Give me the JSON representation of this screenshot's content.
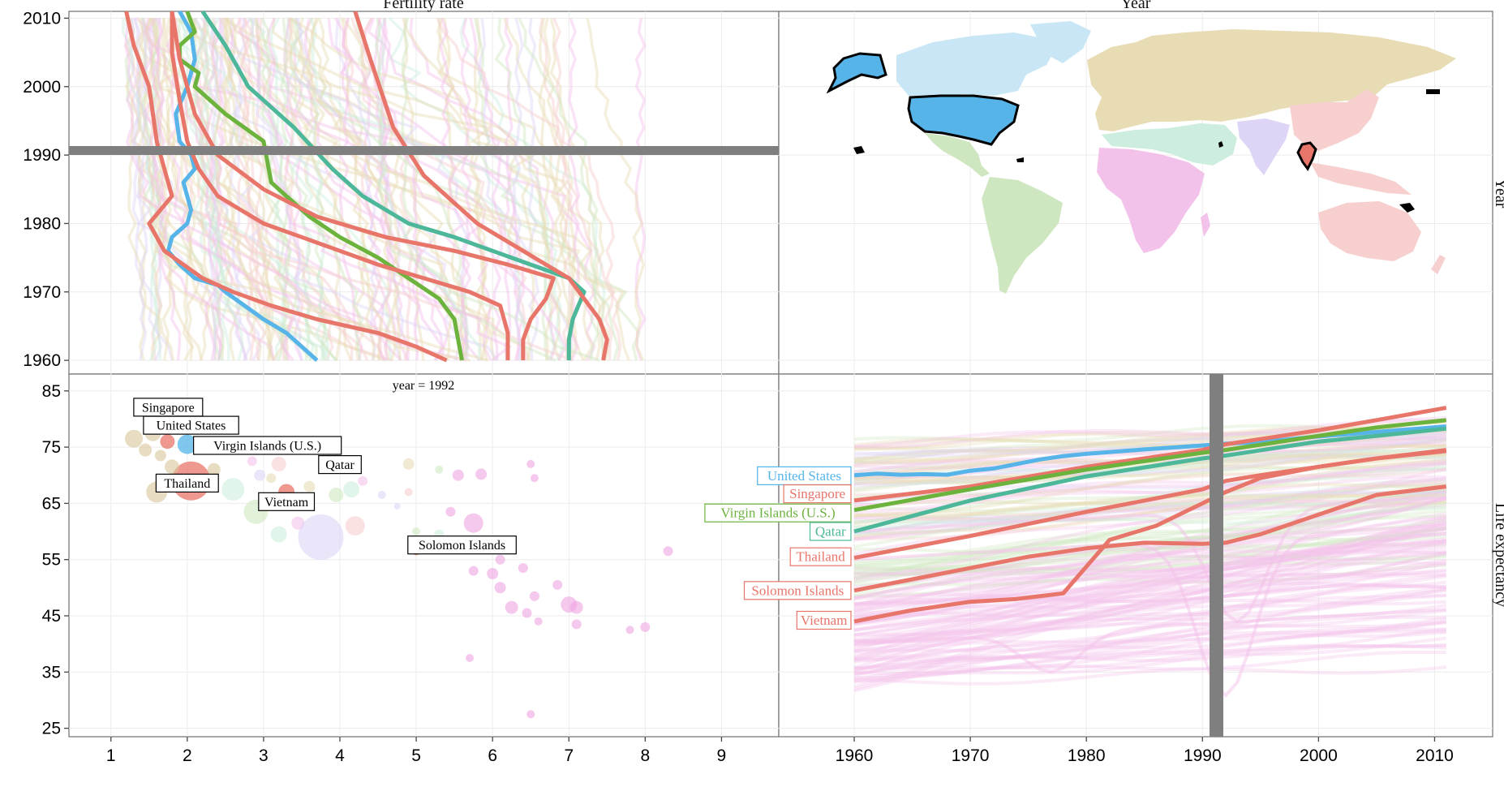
{
  "strips": {
    "top_left": "Fertility rate",
    "top_right": "Year",
    "right_top": "Year",
    "right_bottom": "Life expectancy"
  },
  "annotation": "year = 1992",
  "selected_year": 1992,
  "colors": {
    "united_states": "#56b4e9",
    "singapore": "#e8756a",
    "virgin_islands": "#6cb33e",
    "qatar": "#4db79a",
    "thailand": "#e8756a",
    "solomon_islands": "#e8756a",
    "vietnam": "#e8756a",
    "time_marker": "#7f7f7f",
    "region_americas": "#cfe7c0",
    "region_north_america": "#c9e6f6",
    "region_europe_asia": "#e8dcb5",
    "region_africa": "#f3c2ea",
    "region_middle_east": "#cdeede",
    "region_south_asia": "#ddd4f6",
    "region_east_asia_pacific": "#f7cfcf"
  },
  "chart_data": [
    {
      "type": "line",
      "panel": "fertility-over-time",
      "title": "Fertility rate",
      "xlim": [
        0.45,
        9.75
      ],
      "ylim": [
        1958,
        2011
      ],
      "x_ticks": [],
      "y_ticks": [
        "1960",
        "1970",
        "1980",
        "1990",
        "2000",
        "2010"
      ],
      "series": [
        {
          "name": "United States",
          "x": [
            3.7,
            3.5,
            3.3,
            3.0,
            2.75,
            2.5,
            2.4,
            2.1,
            1.9,
            1.75,
            1.8,
            2.0,
            2.05,
            2.0,
            1.95,
            2.1,
            2.05,
            1.9,
            1.85,
            2.0,
            2.1,
            2.05,
            1.9
          ],
          "y": [
            1960,
            1962,
            1964,
            1966,
            1968,
            1970,
            1971,
            1972,
            1974,
            1976,
            1978,
            1980,
            1982,
            1984,
            1986,
            1988,
            1990,
            1992,
            1996,
            2000,
            2004,
            2008,
            2011
          ]
        },
        {
          "name": "Singapore",
          "x": [
            5.4,
            5.0,
            4.5,
            3.7,
            3.1,
            2.6,
            2.2,
            1.95,
            1.7,
            1.5,
            1.8,
            1.7,
            1.6,
            1.5,
            1.3,
            1.2
          ],
          "y": [
            1960,
            1962,
            1964,
            1966,
            1968,
            1970,
            1972,
            1974,
            1976,
            1980,
            1984,
            1988,
            1992,
            2000,
            2006,
            2011
          ]
        },
        {
          "name": "Virgin Islands (U.S.)",
          "x": [
            5.6,
            5.55,
            5.5,
            5.3,
            4.9,
            4.5,
            4.0,
            3.6,
            3.3,
            3.1,
            3.0,
            2.5,
            2.1,
            2.15,
            1.9,
            1.9,
            2.1,
            2.0
          ],
          "y": [
            1960,
            1963,
            1966,
            1969,
            1972,
            1975,
            1978,
            1981,
            1984,
            1986,
            1992,
            1996,
            2000,
            2002,
            2004,
            2006,
            2008,
            2011
          ]
        },
        {
          "name": "Qatar",
          "x": [
            7.0,
            7.0,
            7.05,
            7.2,
            7.0,
            6.5,
            6.0,
            5.5,
            4.9,
            4.3,
            3.9,
            3.4,
            2.8,
            2.5,
            2.2
          ],
          "y": [
            1960,
            1963,
            1966,
            1970,
            1972,
            1974,
            1976,
            1978,
            1980,
            1984,
            1988,
            1994,
            2000,
            2006,
            2011
          ]
        },
        {
          "name": "Thailand",
          "x": [
            6.2,
            6.2,
            6.1,
            5.7,
            5.1,
            4.5,
            4.0,
            3.5,
            3.0,
            2.4,
            2.15,
            2.0,
            1.9,
            1.8,
            1.8
          ],
          "y": [
            1960,
            1964,
            1968,
            1970,
            1972,
            1974,
            1976,
            1978,
            1980,
            1984,
            1988,
            1992,
            1998,
            2005,
            2011
          ]
        },
        {
          "name": "Solomon Islands",
          "x": [
            7.45,
            7.5,
            7.4,
            7.2,
            7.0,
            6.7,
            6.4,
            6.1,
            5.8,
            5.5,
            5.1,
            4.7,
            4.4,
            4.2
          ],
          "y": [
            1960,
            1963,
            1966,
            1969,
            1972,
            1974,
            1976,
            1978,
            1980,
            1983,
            1987,
            1994,
            2004,
            2011
          ]
        },
        {
          "name": "Vietnam",
          "x": [
            6.4,
            6.4,
            6.5,
            6.7,
            6.8,
            6.2,
            5.5,
            4.6,
            3.7,
            3.0,
            2.4,
            2.1,
            1.9,
            1.8
          ],
          "y": [
            1960,
            1963,
            1966,
            1969,
            1972,
            1974,
            1976,
            1978,
            1981,
            1985,
            1990,
            1996,
            2004,
            2011
          ]
        }
      ],
      "highlight_year": 1992,
      "grid": true,
      "legend": "none"
    },
    {
      "type": "scatter",
      "panel": "life-expectancy-vs-fertility",
      "xlabel": "",
      "ylabel": "",
      "xlim": [
        0.45,
        9.75
      ],
      "ylim": [
        23.5,
        88
      ],
      "x_ticks": [
        "1",
        "2",
        "3",
        "4",
        "5",
        "6",
        "7",
        "8",
        "9"
      ],
      "y_ticks": [
        "25",
        "35",
        "45",
        "55",
        "65",
        "75",
        "85"
      ],
      "annotation": "year = 1992",
      "labels": [
        {
          "text": "Singapore",
          "x": 1.75,
          "y": 82.1
        },
        {
          "text": "United States",
          "x": 2.05,
          "y": 78.9
        },
        {
          "text": "Virgin Islands (U.S.)",
          "x": 3.05,
          "y": 75.3
        },
        {
          "text": "Qatar",
          "x": 4.0,
          "y": 71.9
        },
        {
          "text": "Thailand",
          "x": 2.0,
          "y": 68.6
        },
        {
          "text": "Vietnam",
          "x": 3.3,
          "y": 65.3
        },
        {
          "text": "Solomon Islands",
          "x": 5.6,
          "y": 57.6
        }
      ],
      "points": [
        {
          "name": "Singapore",
          "x": 1.74,
          "y": 76,
          "size": 9
        },
        {
          "name": "United States",
          "x": 2.0,
          "y": 75.5,
          "size": 12
        },
        {
          "name": "Virgin Islands (U.S.)",
          "x": 2.35,
          "y": 74.5,
          "size": 4
        },
        {
          "name": "Qatar",
          "x": 4.05,
          "y": 71.5,
          "size": 4
        },
        {
          "name": "Thailand",
          "x": 2.05,
          "y": 69,
          "size": 24
        },
        {
          "name": "Vietnam",
          "x": 3.3,
          "y": 67,
          "size": 10
        },
        {
          "name": "Solomon Islands",
          "x": 5.0,
          "y": 56.5,
          "size": 5
        },
        {
          "name": "",
          "x": 1.3,
          "y": 76.5,
          "size": 11
        },
        {
          "name": "",
          "x": 1.55,
          "y": 77.5,
          "size": 10
        },
        {
          "name": "",
          "x": 1.45,
          "y": 74.5,
          "size": 8
        },
        {
          "name": "",
          "x": 1.65,
          "y": 73.5,
          "size": 7
        },
        {
          "name": "",
          "x": 1.8,
          "y": 71.5,
          "size": 9
        },
        {
          "name": "",
          "x": 1.6,
          "y": 67,
          "size": 13
        },
        {
          "name": "",
          "x": 2.35,
          "y": 71,
          "size": 8
        },
        {
          "name": "",
          "x": 2.6,
          "y": 67.5,
          "size": 14
        },
        {
          "name": "",
          "x": 2.85,
          "y": 72.5,
          "size": 6
        },
        {
          "name": "",
          "x": 2.95,
          "y": 70,
          "size": 7
        },
        {
          "name": "",
          "x": 3.2,
          "y": 72,
          "size": 9
        },
        {
          "name": "",
          "x": 3.1,
          "y": 69.5,
          "size": 6
        },
        {
          "name": "",
          "x": 2.9,
          "y": 63.5,
          "size": 15
        },
        {
          "name": "",
          "x": 3.2,
          "y": 59.5,
          "size": 10
        },
        {
          "name": "",
          "x": 3.45,
          "y": 61.5,
          "size": 8
        },
        {
          "name": "",
          "x": 3.75,
          "y": 59,
          "size": 28
        },
        {
          "name": "",
          "x": 4.2,
          "y": 61,
          "size": 12
        },
        {
          "name": "",
          "x": 3.6,
          "y": 68,
          "size": 7
        },
        {
          "name": "",
          "x": 3.95,
          "y": 66.5,
          "size": 9
        },
        {
          "name": "",
          "x": 4.15,
          "y": 67.5,
          "size": 10
        },
        {
          "name": "",
          "x": 4.3,
          "y": 69,
          "size": 6
        },
        {
          "name": "",
          "x": 4.55,
          "y": 66.5,
          "size": 5
        },
        {
          "name": "",
          "x": 4.9,
          "y": 67,
          "size": 5
        },
        {
          "name": "",
          "x": 4.9,
          "y": 72,
          "size": 7
        },
        {
          "name": "",
          "x": 5.3,
          "y": 71,
          "size": 5
        },
        {
          "name": "",
          "x": 5.55,
          "y": 70,
          "size": 7
        },
        {
          "name": "",
          "x": 5.85,
          "y": 70.2,
          "size": 7
        },
        {
          "name": "",
          "x": 4.75,
          "y": 64.5,
          "size": 4
        },
        {
          "name": "",
          "x": 5.45,
          "y": 63.5,
          "size": 6
        },
        {
          "name": "",
          "x": 5.75,
          "y": 61.5,
          "size": 12
        },
        {
          "name": "",
          "x": 5.0,
          "y": 60,
          "size": 5
        },
        {
          "name": "",
          "x": 5.3,
          "y": 59.5,
          "size": 6
        },
        {
          "name": "",
          "x": 5.55,
          "y": 58,
          "size": 7
        },
        {
          "name": "",
          "x": 5.95,
          "y": 57.5,
          "size": 6
        },
        {
          "name": "",
          "x": 6.1,
          "y": 55,
          "size": 6
        },
        {
          "name": "",
          "x": 6.4,
          "y": 53.5,
          "size": 6
        },
        {
          "name": "",
          "x": 5.75,
          "y": 53,
          "size": 6
        },
        {
          "name": "",
          "x": 6.0,
          "y": 52.5,
          "size": 7
        },
        {
          "name": "",
          "x": 6.1,
          "y": 50,
          "size": 7
        },
        {
          "name": "",
          "x": 6.25,
          "y": 46.5,
          "size": 8
        },
        {
          "name": "",
          "x": 6.45,
          "y": 45.5,
          "size": 6
        },
        {
          "name": "",
          "x": 6.55,
          "y": 48.5,
          "size": 6
        },
        {
          "name": "",
          "x": 6.6,
          "y": 44,
          "size": 5
        },
        {
          "name": "",
          "x": 6.85,
          "y": 50.5,
          "size": 6
        },
        {
          "name": "",
          "x": 7.0,
          "y": 47,
          "size": 10
        },
        {
          "name": "",
          "x": 7.1,
          "y": 46.5,
          "size": 8
        },
        {
          "name": "",
          "x": 7.1,
          "y": 43.5,
          "size": 6
        },
        {
          "name": "",
          "x": 7.8,
          "y": 42.5,
          "size": 5
        },
        {
          "name": "",
          "x": 8.0,
          "y": 43,
          "size": 6
        },
        {
          "name": "",
          "x": 6.5,
          "y": 72,
          "size": 5
        },
        {
          "name": "",
          "x": 6.55,
          "y": 69.5,
          "size": 5
        },
        {
          "name": "",
          "x": 8.3,
          "y": 56.5,
          "size": 6
        },
        {
          "name": "",
          "x": 5.7,
          "y": 37.5,
          "size": 5
        },
        {
          "name": "",
          "x": 6.5,
          "y": 27.5,
          "size": 5
        }
      ],
      "grid": true,
      "legend": "none"
    },
    {
      "type": "line",
      "panel": "life-expectancy-over-time",
      "xlim": [
        1953.5,
        2015
      ],
      "ylim": [
        23.5,
        88
      ],
      "x_ticks": [
        "1960",
        "1970",
        "1980",
        "1990",
        "2000",
        "2010"
      ],
      "y_ticks": [],
      "highlight_year": 1992,
      "series": [
        {
          "name": "United States",
          "x": [
            1960,
            1962,
            1964,
            1966,
            1968,
            1970,
            1972,
            1974,
            1976,
            1978,
            1980,
            1985,
            1990,
            1992,
            1995,
            2000,
            2005,
            2011
          ],
          "y": [
            70,
            70.3,
            70.1,
            70.2,
            70.1,
            70.8,
            71.2,
            72.0,
            72.8,
            73.4,
            73.8,
            74.6,
            75.3,
            75.6,
            75.9,
            76.9,
            77.7,
            78.7
          ]
        },
        {
          "name": "Singapore",
          "x": [
            1960,
            1970,
            1980,
            1990,
            1992,
            2000,
            2005,
            2011
          ],
          "y": [
            65.5,
            68,
            71.5,
            74.5,
            75.5,
            78,
            79.8,
            82
          ]
        },
        {
          "name": "Virgin Islands (U.S.)",
          "x": [
            1960,
            1970,
            1980,
            1990,
            1992,
            2000,
            2005,
            2011
          ],
          "y": [
            63.8,
            67.5,
            71,
            74,
            74.5,
            77,
            78.5,
            79.8
          ]
        },
        {
          "name": "Qatar",
          "x": [
            1960,
            1970,
            1980,
            1990,
            1992,
            2000,
            2005,
            2011
          ],
          "y": [
            60,
            65.5,
            69.8,
            73,
            73.5,
            76,
            77,
            78.3
          ]
        },
        {
          "name": "Thailand",
          "x": [
            1960,
            1970,
            1980,
            1990,
            1992,
            1995,
            2000,
            2005,
            2011
          ],
          "y": [
            55.3,
            59.2,
            63.5,
            67.5,
            69,
            70,
            71.5,
            73,
            74.3
          ]
        },
        {
          "name": "Solomon Islands",
          "x": [
            1960,
            1965,
            1970,
            1975,
            1980,
            1985,
            1990,
            1992,
            1995,
            2000,
            2005,
            2011
          ],
          "y": [
            49.5,
            51.5,
            53.5,
            55.5,
            57,
            58,
            57.8,
            58,
            59.5,
            63,
            66.5,
            68
          ]
        },
        {
          "name": "Vietnam",
          "x": [
            1960,
            1965,
            1970,
            1974,
            1978,
            1982,
            1986,
            1990,
            1992,
            1995,
            2000,
            2005,
            2011
          ],
          "y": [
            44,
            46,
            47.5,
            48,
            49,
            58.5,
            61,
            65,
            67,
            69.5,
            71.5,
            73,
            74.5
          ]
        }
      ],
      "labels": [
        {
          "text": "United States",
          "y": 69.9
        },
        {
          "text": "Singapore",
          "y": 66.7
        },
        {
          "text": "Virgin Islands (U.S.)",
          "y": 63.3
        },
        {
          "text": "Qatar",
          "y": 60.0
        },
        {
          "text": "Thailand",
          "y": 55.5
        },
        {
          "text": "Solomon Islands",
          "y": 49.5
        },
        {
          "text": "Vietnam",
          "y": 44.2
        }
      ],
      "grid": true,
      "legend": "none"
    }
  ]
}
